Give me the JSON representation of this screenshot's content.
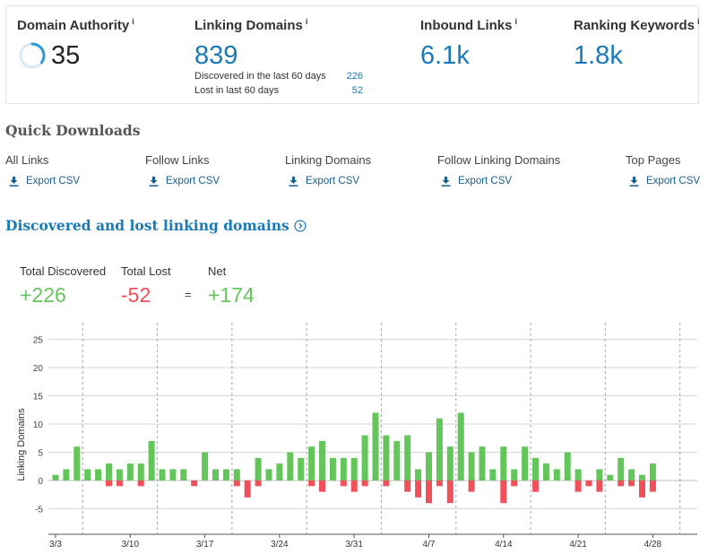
{
  "metrics": {
    "domain_authority": {
      "label": "Domain Authority",
      "info": "i",
      "value": "35"
    },
    "linking_domains": {
      "label": "Linking Domains",
      "info": "i",
      "value": "839",
      "discovered_label": "Discovered in the last 60 days",
      "discovered_value": "226",
      "lost_label": "Lost in last 60 days",
      "lost_value": "52"
    },
    "inbound_links": {
      "label": "Inbound Links",
      "info": "i",
      "value": "6.1k"
    },
    "ranking_keywords": {
      "label": "Ranking Keywords",
      "info": "i",
      "value": "1.8k"
    }
  },
  "quick_downloads": {
    "title": "Quick Downloads",
    "items": [
      {
        "title": "All Links",
        "link": "Export CSV"
      },
      {
        "title": "Follow Links",
        "link": "Export CSV"
      },
      {
        "title": "Linking Domains",
        "link": "Export CSV"
      },
      {
        "title": "Follow Linking Domains",
        "link": "Export CSV"
      },
      {
        "title": "Top Pages",
        "link": "Export CSV"
      }
    ]
  },
  "discovered_section": {
    "title": "Discovered and lost linking domains",
    "total_discovered_label": "Total Discovered",
    "total_discovered_value": "+226",
    "total_lost_label": "Total Lost",
    "total_lost_value": "-52",
    "equals": "=",
    "net_label": "Net",
    "net_value": "+174"
  },
  "colors": {
    "accent": "#1a7ab8",
    "positive": "#63c55a",
    "negative": "#f0505a"
  },
  "chart_data": {
    "type": "bar",
    "ylabel": "Linking Domains",
    "yticks": [
      -5,
      0,
      5,
      10,
      15,
      20,
      25
    ],
    "ylim": [
      -7,
      26
    ],
    "x_start_day": 0,
    "x_tick_labels": [
      "3/3",
      "3/10",
      "3/17",
      "3/24",
      "3/31",
      "4/7",
      "4/14",
      "4/21",
      "4/28"
    ],
    "x_tick_days": [
      0,
      7,
      14,
      21,
      28,
      35,
      42,
      49,
      56
    ],
    "week_divider_days": [
      3,
      10,
      17,
      24,
      31,
      38,
      45,
      52,
      59
    ],
    "series": [
      {
        "name": "Discovered",
        "values": [
          1,
          2,
          6,
          2,
          2,
          3,
          2,
          3,
          3,
          7,
          2,
          2,
          2,
          0,
          5,
          2,
          2,
          2,
          0,
          4,
          2,
          3,
          5,
          4,
          6,
          7,
          4,
          4,
          4,
          8,
          12,
          8,
          7,
          8,
          2,
          5,
          11,
          6,
          12,
          5,
          6,
          2,
          6,
          2,
          6,
          4,
          3,
          2,
          5,
          2,
          0,
          2,
          1,
          4,
          2,
          1,
          3
        ]
      },
      {
        "name": "Lost",
        "values": [
          0,
          0,
          0,
          0,
          0,
          -1,
          -1,
          0,
          -1,
          0,
          0,
          0,
          0,
          -1,
          0,
          0,
          0,
          -1,
          -3,
          -1,
          0,
          0,
          0,
          0,
          -1,
          -2,
          0,
          -1,
          -2,
          -1,
          0,
          -1,
          0,
          -2,
          -3,
          -4,
          -1,
          -4,
          0,
          -2,
          0,
          0,
          -4,
          -1,
          0,
          -2,
          0,
          0,
          0,
          -2,
          -1,
          -2,
          0,
          -1,
          -1,
          -3,
          -2
        ]
      }
    ]
  }
}
